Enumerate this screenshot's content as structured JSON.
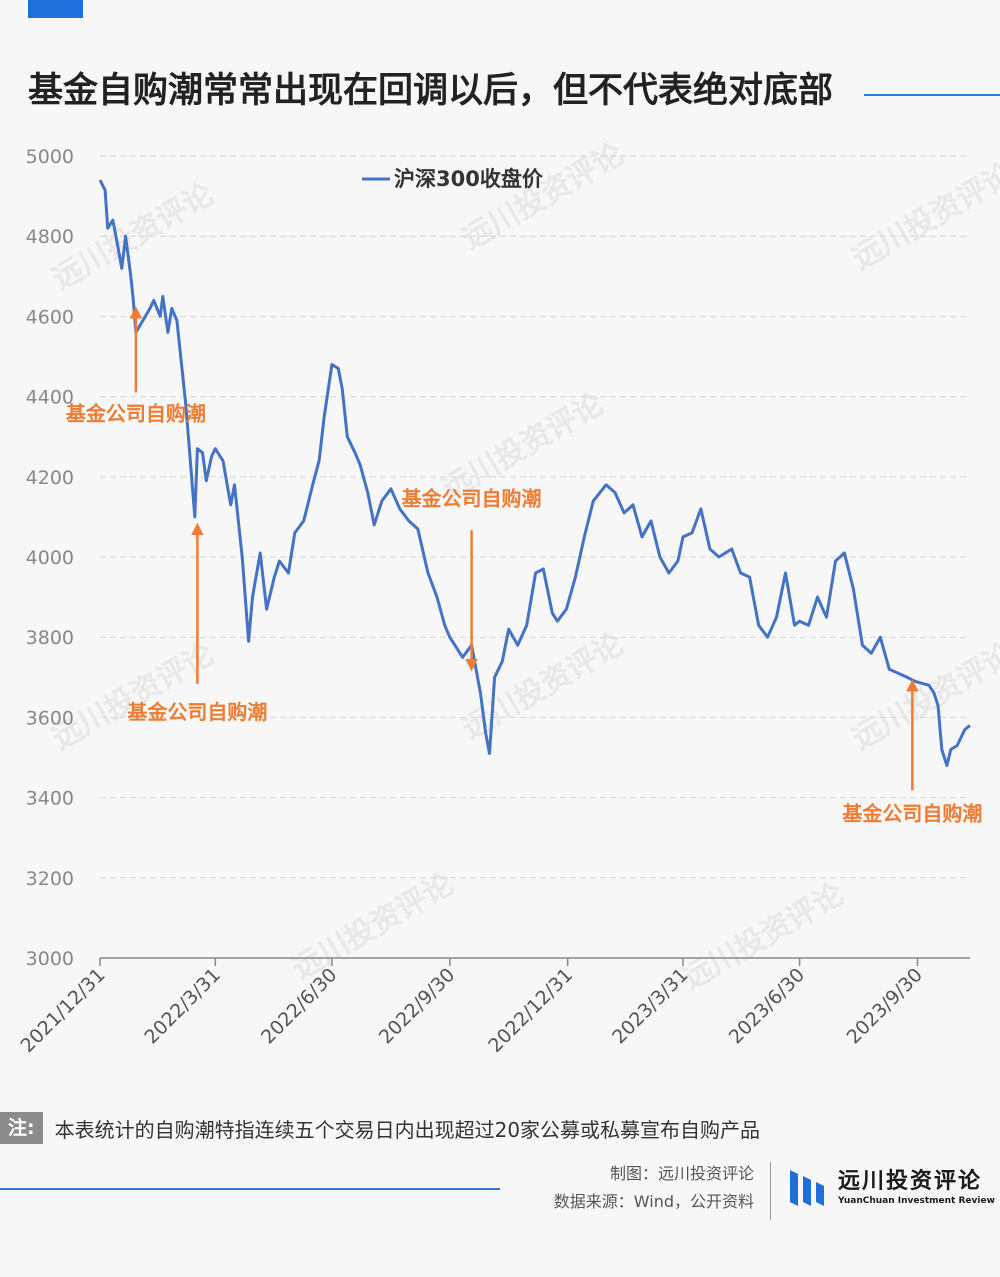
{
  "header": {
    "title": "基金自购潮常常出现在回调以后，但不代表绝对底部"
  },
  "chart_data": {
    "type": "line",
    "title": "",
    "legend": "top-center",
    "grid": "horizontal-dashed",
    "x_ticks": [
      "2021/12/31",
      "2022/3/31",
      "2022/6/30",
      "2022/9/30",
      "2022/12/31",
      "2023/3/31",
      "2023/6/30",
      "2023/9/30"
    ],
    "x_range": [
      "2021/12/31",
      "2023/11/10"
    ],
    "ylim": [
      3000,
      5000
    ],
    "y_ticks": [
      3000,
      3200,
      3400,
      3600,
      3800,
      4000,
      4200,
      4400,
      4600,
      4800,
      5000
    ],
    "series": [
      {
        "name": "沪深300收盘价",
        "color": "#4472c4",
        "points": [
          [
            "2021-12-31",
            4940
          ],
          [
            "2022-01-04",
            4915
          ],
          [
            "2022-01-06",
            4820
          ],
          [
            "2022-01-10",
            4840
          ],
          [
            "2022-01-13",
            4790
          ],
          [
            "2022-01-17",
            4720
          ],
          [
            "2022-01-20",
            4800
          ],
          [
            "2022-01-24",
            4700
          ],
          [
            "2022-01-26",
            4640
          ],
          [
            "2022-01-28",
            4560
          ],
          [
            "2022-02-08",
            4620
          ],
          [
            "2022-02-11",
            4640
          ],
          [
            "2022-02-16",
            4600
          ],
          [
            "2022-02-18",
            4650
          ],
          [
            "2022-02-22",
            4560
          ],
          [
            "2022-02-25",
            4620
          ],
          [
            "2022-03-01",
            4590
          ],
          [
            "2022-03-04",
            4500
          ],
          [
            "2022-03-08",
            4380
          ],
          [
            "2022-03-10",
            4300
          ],
          [
            "2022-03-15",
            4100
          ],
          [
            "2022-03-17",
            4270
          ],
          [
            "2022-03-21",
            4260
          ],
          [
            "2022-03-24",
            4190
          ],
          [
            "2022-03-28",
            4250
          ],
          [
            "2022-03-31",
            4270
          ],
          [
            "2022-04-06",
            4240
          ],
          [
            "2022-04-12",
            4130
          ],
          [
            "2022-04-15",
            4180
          ],
          [
            "2022-04-21",
            4000
          ],
          [
            "2022-04-26",
            3790
          ],
          [
            "2022-04-29",
            3900
          ],
          [
            "2022-05-05",
            4010
          ],
          [
            "2022-05-10",
            3870
          ],
          [
            "2022-05-16",
            3950
          ],
          [
            "2022-05-20",
            3990
          ],
          [
            "2022-05-27",
            3960
          ],
          [
            "2022-06-01",
            4060
          ],
          [
            "2022-06-08",
            4090
          ],
          [
            "2022-06-15",
            4180
          ],
          [
            "2022-06-20",
            4240
          ],
          [
            "2022-06-24",
            4350
          ],
          [
            "2022-06-30",
            4480
          ],
          [
            "2022-07-05",
            4470
          ],
          [
            "2022-07-08",
            4420
          ],
          [
            "2022-07-12",
            4300
          ],
          [
            "2022-07-18",
            4260
          ],
          [
            "2022-07-22",
            4230
          ],
          [
            "2022-07-28",
            4160
          ],
          [
            "2022-08-02",
            4080
          ],
          [
            "2022-08-08",
            4140
          ],
          [
            "2022-08-15",
            4170
          ],
          [
            "2022-08-22",
            4120
          ],
          [
            "2022-08-29",
            4090
          ],
          [
            "2022-09-05",
            4070
          ],
          [
            "2022-09-13",
            3960
          ],
          [
            "2022-09-20",
            3900
          ],
          [
            "2022-09-26",
            3830
          ],
          [
            "2022-09-30",
            3800
          ],
          [
            "2022-10-10",
            3750
          ],
          [
            "2022-10-17",
            3780
          ],
          [
            "2022-10-24",
            3660
          ],
          [
            "2022-10-28",
            3560
          ],
          [
            "2022-10-31",
            3510
          ],
          [
            "2022-11-04",
            3700
          ],
          [
            "2022-11-10",
            3740
          ],
          [
            "2022-11-15",
            3820
          ],
          [
            "2022-11-22",
            3780
          ],
          [
            "2022-11-29",
            3830
          ],
          [
            "2022-12-06",
            3960
          ],
          [
            "2022-12-12",
            3970
          ],
          [
            "2022-12-19",
            3860
          ],
          [
            "2022-12-23",
            3840
          ],
          [
            "2022-12-30",
            3870
          ],
          [
            "2023-01-06",
            3950
          ],
          [
            "2023-01-13",
            4050
          ],
          [
            "2023-01-20",
            4140
          ],
          [
            "2023-01-30",
            4180
          ],
          [
            "2023-02-06",
            4160
          ],
          [
            "2023-02-13",
            4110
          ],
          [
            "2023-02-20",
            4130
          ],
          [
            "2023-02-27",
            4050
          ],
          [
            "2023-03-06",
            4090
          ],
          [
            "2023-03-13",
            4000
          ],
          [
            "2023-03-20",
            3960
          ],
          [
            "2023-03-27",
            3990
          ],
          [
            "2023-03-31",
            4050
          ],
          [
            "2023-04-07",
            4060
          ],
          [
            "2023-04-14",
            4120
          ],
          [
            "2023-04-21",
            4020
          ],
          [
            "2023-04-28",
            4000
          ],
          [
            "2023-05-08",
            4020
          ],
          [
            "2023-05-15",
            3960
          ],
          [
            "2023-05-22",
            3950
          ],
          [
            "2023-05-29",
            3830
          ],
          [
            "2023-06-05",
            3800
          ],
          [
            "2023-06-12",
            3850
          ],
          [
            "2023-06-19",
            3960
          ],
          [
            "2023-06-26",
            3830
          ],
          [
            "2023-06-30",
            3840
          ],
          [
            "2023-07-07",
            3830
          ],
          [
            "2023-07-14",
            3900
          ],
          [
            "2023-07-21",
            3850
          ],
          [
            "2023-07-28",
            3990
          ],
          [
            "2023-08-04",
            4010
          ],
          [
            "2023-08-11",
            3920
          ],
          [
            "2023-08-18",
            3780
          ],
          [
            "2023-08-25",
            3760
          ],
          [
            "2023-09-01",
            3800
          ],
          [
            "2023-09-08",
            3720
          ],
          [
            "2023-09-15",
            3710
          ],
          [
            "2023-09-22",
            3700
          ],
          [
            "2023-09-28",
            3690
          ],
          [
            "2023-10-09",
            3680
          ],
          [
            "2023-10-13",
            3660
          ],
          [
            "2023-10-16",
            3630
          ],
          [
            "2023-10-19",
            3520
          ],
          [
            "2023-10-23",
            3480
          ],
          [
            "2023-10-26",
            3520
          ],
          [
            "2023-10-31",
            3530
          ],
          [
            "2023-11-06",
            3570
          ],
          [
            "2023-11-10",
            3580
          ]
        ]
      }
    ],
    "annotations": [
      {
        "text": "基金公司自购潮",
        "date": "2022-01-28",
        "value": 4610,
        "direction": "up",
        "color": "#f07c33"
      },
      {
        "text": "基金公司自购潮",
        "date": "2022-03-17",
        "value": 4070,
        "direction": "up",
        "color": "#f07c33"
      },
      {
        "text": "基金公司自购潮",
        "date": "2022-10-17",
        "value": 3730,
        "direction": "down",
        "color": "#f07c33"
      },
      {
        "text": "基金公司自购潮",
        "date": "2023-09-26",
        "value": 3680,
        "direction": "up",
        "color": "#f07c33"
      }
    ]
  },
  "note": {
    "label": "注:",
    "text": "本表统计的自购潮特指连续五个交易日内出现超过20家公募或私募宣布自购产品"
  },
  "footer": {
    "credit_line1": "制图：远川投资评论",
    "credit_line2": "数据来源：Wind，公开资料",
    "logo_cn": "远川投资评论",
    "logo_en": "YuanChuan Investment Review"
  },
  "colors": {
    "accent": "#2f7bd6",
    "series": "#4472c4",
    "annotation": "#f07c33"
  },
  "watermark": "远川投资评论"
}
